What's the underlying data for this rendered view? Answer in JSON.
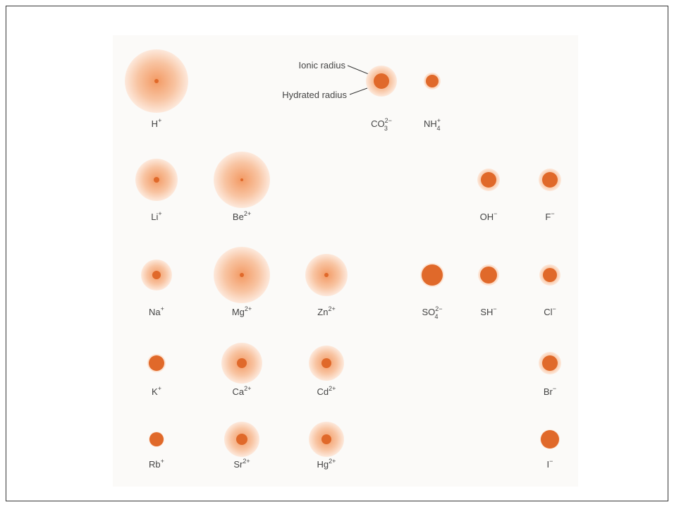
{
  "annotations": {
    "ionic_radius": "Ionic radius",
    "hydrated_radius": "Hydrated radius"
  },
  "ions": [
    {
      "label": {
        "base": "H",
        "sup": "+"
      },
      "hydrated_radius": 45,
      "ionic_radius": 3
    },
    {
      "label": {
        "base": "CO",
        "sub": "3",
        "sup": "2−"
      },
      "hydrated_radius": 22,
      "ionic_radius": 11
    },
    {
      "label": {
        "base": "NH",
        "sub": "4",
        "sup": "+"
      },
      "hydrated_radius": 12,
      "ionic_radius": 9
    },
    {
      "label": {
        "base": "Li",
        "sup": "+"
      },
      "hydrated_radius": 30,
      "ionic_radius": 4
    },
    {
      "label": {
        "base": "Be",
        "sup": "2+"
      },
      "hydrated_radius": 40,
      "ionic_radius": 2
    },
    {
      "label": {
        "base": "OH",
        "sup": "−"
      },
      "hydrated_radius": 16,
      "ionic_radius": 11
    },
    {
      "label": {
        "base": "F",
        "sup": "−"
      },
      "hydrated_radius": 16,
      "ionic_radius": 11
    },
    {
      "label": {
        "base": "Na",
        "sup": "+"
      },
      "hydrated_radius": 22,
      "ionic_radius": 6
    },
    {
      "label": {
        "base": "Mg",
        "sup": "2+"
      },
      "hydrated_radius": 40,
      "ionic_radius": 3
    },
    {
      "label": {
        "base": "Zn",
        "sup": "2+"
      },
      "hydrated_radius": 30,
      "ionic_radius": 3
    },
    {
      "label": {
        "base": "SO",
        "sub": "4",
        "sup": "2−"
      },
      "hydrated_radius": 17,
      "ionic_radius": 15
    },
    {
      "label": {
        "base": "SH",
        "sup": "−"
      },
      "hydrated_radius": 15,
      "ionic_radius": 12
    },
    {
      "label": {
        "base": "Cl",
        "sup": "−"
      },
      "hydrated_radius": 15,
      "ionic_radius": 10
    },
    {
      "label": {
        "base": "K",
        "sup": "+"
      },
      "hydrated_radius": 13,
      "ionic_radius": 11
    },
    {
      "label": {
        "base": "Ca",
        "sup": "2+"
      },
      "hydrated_radius": 29,
      "ionic_radius": 7
    },
    {
      "label": {
        "base": "Cd",
        "sup": "2+"
      },
      "hydrated_radius": 25,
      "ionic_radius": 7
    },
    {
      "label": {
        "base": "Br",
        "sup": "−"
      },
      "hydrated_radius": 16,
      "ionic_radius": 11
    },
    {
      "label": {
        "base": "Rb",
        "sup": "+"
      },
      "hydrated_radius": 11,
      "ionic_radius": 10
    },
    {
      "label": {
        "base": "Sr",
        "sup": "2+"
      },
      "hydrated_radius": 25,
      "ionic_radius": 8
    },
    {
      "label": {
        "base": "Hg",
        "sup": "2+"
      },
      "hydrated_radius": 25,
      "ionic_radius": 7
    },
    {
      "label": {
        "base": "I",
        "sup": "−"
      },
      "hydrated_radius": 14,
      "ionic_radius": 13
    }
  ]
}
